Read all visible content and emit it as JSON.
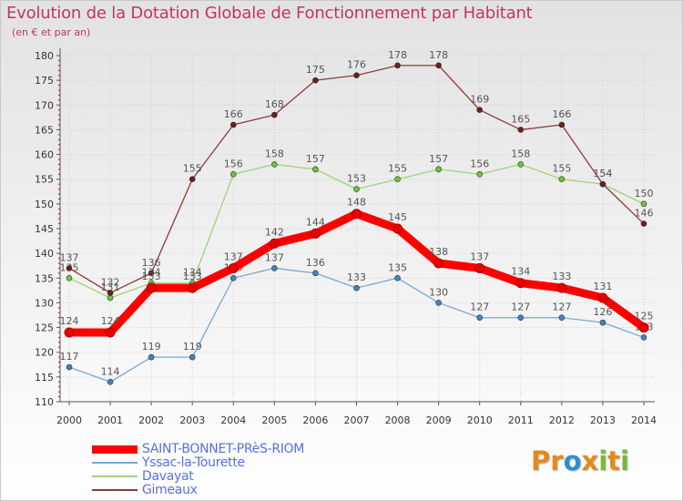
{
  "header": {
    "title": "Evolution de la Dotation Globale de Fonctionnement par Habitant",
    "subtitle": "(en € et par an)"
  },
  "logo": {
    "text": "Proxiti"
  },
  "colors": {
    "title": "#c2336b",
    "legend_text": "#5a6fe0",
    "background_gradient_top": "#e4e4e4",
    "background_gradient_bottom": "#ffffff"
  },
  "chart_data": {
    "type": "line",
    "title": "Evolution de la Dotation Globale de Fonctionnement par Habitant",
    "subtitle": "(en € et par an)",
    "x": [
      "2000",
      "2001",
      "2002",
      "2003",
      "2004",
      "2005",
      "2006",
      "2007",
      "2008",
      "2009",
      "2010",
      "2011",
      "2012",
      "2013",
      "2014"
    ],
    "ylim": [
      110,
      180
    ],
    "yticks": [
      110,
      115,
      120,
      125,
      130,
      135,
      140,
      145,
      150,
      155,
      160,
      165,
      170,
      175,
      180
    ],
    "grid": true,
    "legend_position": "bottom-left",
    "series": [
      {
        "name": "SAINT-BONNET-PRèS-RIOM",
        "color": "#ff0000",
        "marker": "#e60000",
        "values": [
          124,
          124,
          133,
          133,
          137,
          142,
          144,
          148,
          145,
          138,
          137,
          134,
          133,
          131,
          125
        ]
      },
      {
        "name": "Yssac-la-Tourette",
        "color": "#7aa7d2",
        "marker": "#3b85c8",
        "values": [
          117,
          114,
          119,
          119,
          135,
          137,
          136,
          133,
          135,
          130,
          127,
          127,
          127,
          126,
          123
        ]
      },
      {
        "name": "Davayat",
        "color": "#9ed37a",
        "marker": "#6cc43a",
        "values": [
          135,
          131,
          134,
          134,
          156,
          158,
          157,
          153,
          155,
          157,
          156,
          158,
          155,
          154,
          150
        ]
      },
      {
        "name": "Gimeaux",
        "color": "#8b3a3a",
        "marker": "#6b1f1f",
        "values": [
          137,
          132,
          136,
          155,
          166,
          168,
          175,
          176,
          178,
          178,
          169,
          165,
          166,
          154,
          146
        ]
      }
    ]
  }
}
